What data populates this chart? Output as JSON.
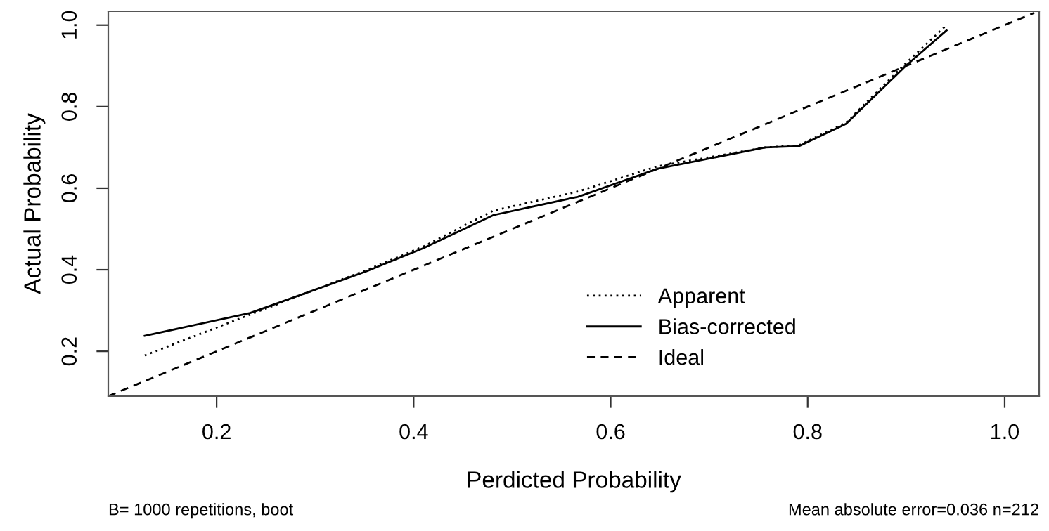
{
  "chart_data": {
    "type": "line",
    "xlabel": "Perdicted Probability",
    "ylabel": "Actual Probability",
    "xlim": [
      0.09,
      1.035
    ],
    "ylim": [
      0.09,
      1.034
    ],
    "xticks": [
      0.2,
      0.4,
      0.6,
      0.8,
      {
        "value": 1,
        "label": "1.0"
      }
    ],
    "yticks": [
      0.2,
      0.4,
      0.6,
      0.8,
      {
        "value": 1,
        "label": "1.0"
      }
    ],
    "grid": false,
    "legend": "bottom right",
    "marker": "none",
    "series": [
      {
        "name": "Apparent",
        "color": "#000000",
        "line_style": "dotted",
        "x": [
          0.127,
          0.234,
          0.353,
          0.41,
          0.481,
          0.567,
          0.648,
          0.757,
          0.791,
          0.839,
          0.9,
          0.941
        ],
        "values": [
          0.19,
          0.29,
          0.4,
          0.457,
          0.545,
          0.592,
          0.654,
          0.7,
          0.705,
          0.761,
          0.907,
          1.0
        ]
      },
      {
        "name": "Bias-corrected",
        "color": "#000000",
        "line_style": "solid",
        "x": [
          0.127,
          0.234,
          0.353,
          0.41,
          0.481,
          0.567,
          0.648,
          0.757,
          0.791,
          0.839,
          0.9,
          0.941
        ],
        "values": [
          0.238,
          0.294,
          0.397,
          0.453,
          0.534,
          0.579,
          0.648,
          0.7,
          0.703,
          0.758,
          0.901,
          0.987
        ]
      },
      {
        "name": "Ideal",
        "color": "#000000",
        "line_style": "dashed",
        "x": [
          0.09,
          1.03
        ],
        "values": [
          0.09,
          1.03
        ]
      }
    ],
    "annotations": [
      "B= 1000 repetitions, boot",
      "Mean absolute error=0.036 n=212"
    ]
  }
}
